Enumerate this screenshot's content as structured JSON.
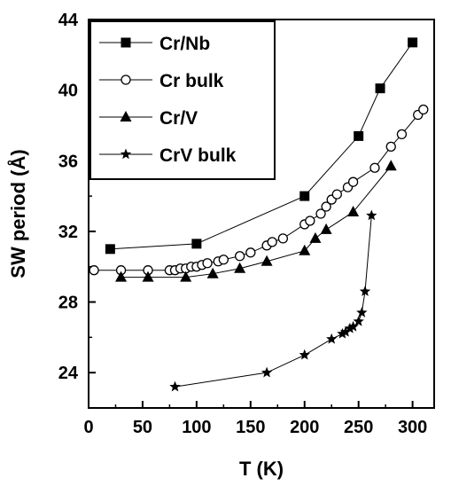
{
  "chart_data": {
    "type": "line",
    "xlabel": "T (K)",
    "ylabel": "SW period (Å)",
    "xlim": [
      0,
      320
    ],
    "ylim": [
      22,
      44
    ],
    "xticks": [
      0,
      50,
      100,
      150,
      200,
      250,
      300
    ],
    "yticks": [
      24,
      28,
      32,
      36,
      40,
      44
    ],
    "x_tick_labels": [
      "0",
      "50",
      "100",
      "150",
      "200",
      "250",
      "300"
    ],
    "y_tick_labels": [
      "24",
      "28",
      "32",
      "36",
      "40",
      "44"
    ],
    "grid": false,
    "legend_position": "top-left",
    "series": [
      {
        "name": "Cr/Nb",
        "marker": "square-filled",
        "x": [
          20,
          100,
          200,
          250,
          270,
          300
        ],
        "y": [
          31.0,
          31.3,
          34.0,
          37.4,
          40.1,
          42.7
        ]
      },
      {
        "name": "Cr bulk",
        "marker": "circle-open",
        "x": [
          5,
          30,
          55,
          75,
          80,
          85,
          90,
          95,
          100,
          105,
          110,
          120,
          125,
          140,
          150,
          165,
          170,
          180,
          200,
          205,
          215,
          220,
          225,
          230,
          240,
          245,
          265,
          280,
          290,
          305,
          310
        ],
        "y": [
          29.8,
          29.8,
          29.8,
          29.8,
          29.8,
          29.9,
          29.9,
          30.0,
          30.0,
          30.1,
          30.2,
          30.3,
          30.4,
          30.6,
          30.8,
          31.2,
          31.4,
          31.6,
          32.4,
          32.6,
          33.0,
          33.4,
          33.8,
          34.1,
          34.5,
          34.8,
          35.6,
          36.8,
          37.5,
          38.6,
          38.9
        ]
      },
      {
        "name": "Cr/V",
        "marker": "triangle-filled",
        "x": [
          30,
          55,
          90,
          115,
          140,
          165,
          200,
          210,
          220,
          245,
          280
        ],
        "y": [
          29.4,
          29.4,
          29.4,
          29.6,
          29.9,
          30.3,
          30.9,
          31.6,
          32.1,
          33.1,
          35.7
        ]
      },
      {
        "name": "CrV bulk",
        "marker": "star-filled",
        "x": [
          80,
          165,
          200,
          225,
          235,
          238,
          242,
          245,
          250,
          253,
          256,
          262
        ],
        "y": [
          23.2,
          24.0,
          25.0,
          25.9,
          26.2,
          26.3,
          26.5,
          26.6,
          26.9,
          27.4,
          28.6,
          32.9
        ]
      }
    ]
  }
}
